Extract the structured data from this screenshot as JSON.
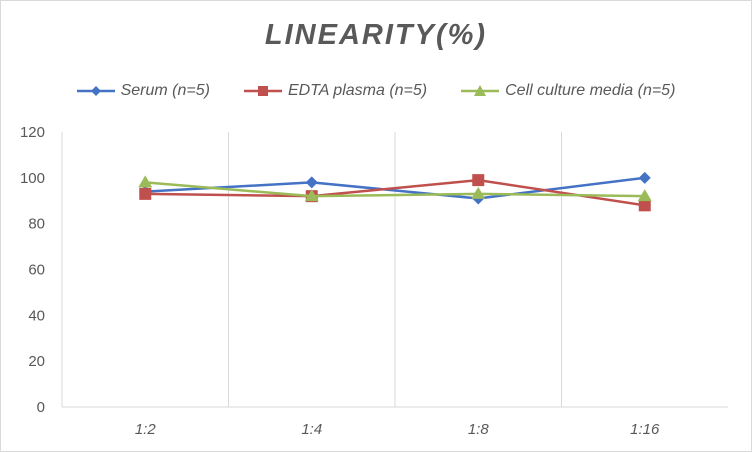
{
  "chart_data": {
    "type": "line",
    "title": "LINEARITY(%)",
    "xlabel": "",
    "ylabel": "",
    "categories": [
      "1:2",
      "1:4",
      "1:8",
      "1:16"
    ],
    "ylim": [
      0,
      120
    ],
    "yticks": [
      0,
      20,
      40,
      60,
      80,
      100,
      120
    ],
    "grid": "vertical",
    "legend": "top",
    "series": [
      {
        "name": "Serum (n=5)",
        "color": "#4472c4",
        "marker": "diamond",
        "values": [
          94,
          98,
          91,
          100
        ]
      },
      {
        "name": "EDTA plasma (n=5)",
        "color": "#c0504d",
        "marker": "square",
        "values": [
          93,
          92,
          99,
          88
        ]
      },
      {
        "name": "Cell culture media (n=5)",
        "color": "#9bbb59",
        "marker": "triangle",
        "values": [
          98,
          92,
          93,
          92
        ]
      }
    ]
  }
}
